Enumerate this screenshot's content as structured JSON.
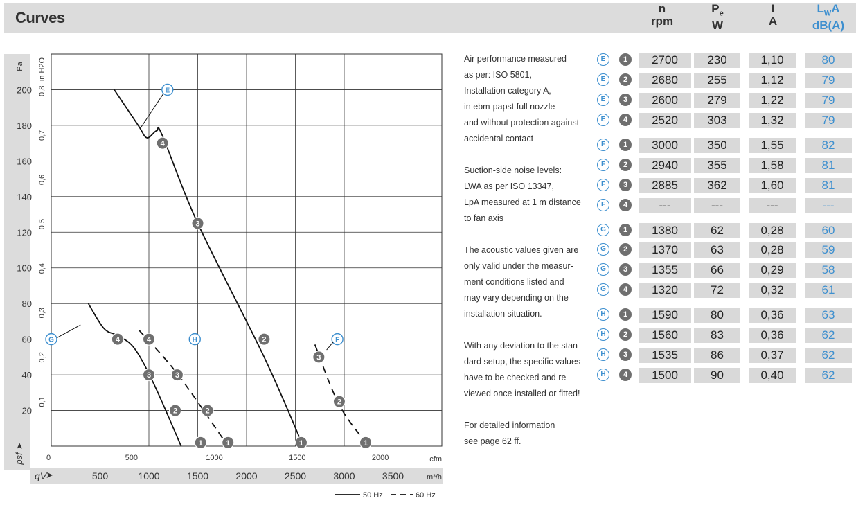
{
  "header": {
    "title": "Curves",
    "col_n": {
      "top": "n",
      "bottom": "rpm"
    },
    "col_p": {
      "top": "P",
      "sub": "e",
      "bottom": "W"
    },
    "col_i": {
      "top": "I",
      "bottom": "A"
    },
    "col_lwa": {
      "top": "L",
      "sub": "W",
      "top_suffix": "A",
      "bottom": "dB(A)"
    }
  },
  "colors": {
    "accent": "#3d8fcf",
    "marker": "#6f6f6f",
    "cell_bg": "#d9d9d9",
    "header_bg": "#dcdcdc"
  },
  "chart_data": {
    "type": "line",
    "y_axis_pa": {
      "label": "Pa",
      "ticks": [
        20,
        40,
        60,
        80,
        100,
        120,
        140,
        160,
        180,
        200
      ],
      "ylim": [
        0,
        220
      ]
    },
    "y_axis_inh2o": {
      "label": "in H2O",
      "ticks": [
        "0,1",
        "0,2",
        "0,3",
        "0,4",
        "0,5",
        "0,6",
        "0,7",
        "0,8"
      ]
    },
    "x_axis_cfm": {
      "unit": "cfm",
      "ticks": [
        "0",
        "500",
        "1000",
        "1500",
        "2000"
      ]
    },
    "x_axis_m3h": {
      "label": "qV",
      "unit": "m³/h",
      "ticks": [
        "500",
        "1000",
        "1500",
        "2000",
        "2500",
        "3000",
        "3500"
      ],
      "xlim": [
        0,
        4000
      ]
    },
    "y_bottom_label": "psf",
    "series": [
      {
        "name": "E",
        "freq": "50 Hz",
        "points": [
          [
            645,
            200
          ],
          [
            890,
            180
          ],
          [
            980,
            173
          ],
          [
            1080,
            177
          ],
          [
            1140,
            174
          ],
          [
            1500,
            125
          ],
          [
            2180,
            50
          ],
          [
            2580,
            0
          ]
        ],
        "label_at": [
          1190,
          200
        ],
        "markers": [
          {
            "n": "4",
            "x": 1140,
            "y": 170
          },
          {
            "n": "3",
            "x": 1500,
            "y": 125
          },
          {
            "n": "2",
            "x": 2180,
            "y": 60
          },
          {
            "n": "1",
            "x": 2560,
            "y": 2
          }
        ]
      },
      {
        "name": "G",
        "freq": "50 Hz",
        "points": [
          [
            380,
            80
          ],
          [
            540,
            66
          ],
          [
            680,
            62
          ],
          [
            850,
            55
          ],
          [
            1050,
            35
          ],
          [
            1330,
            0
          ]
        ],
        "label_at": [
          0,
          60
        ],
        "markers": [
          {
            "n": "4",
            "x": 680,
            "y": 60
          },
          {
            "n": "3",
            "x": 1000,
            "y": 40
          },
          {
            "n": "2",
            "x": 1270,
            "y": 20
          },
          {
            "n": "1",
            "x": 1530,
            "y": 2
          }
        ]
      },
      {
        "name": "H",
        "freq": "60 Hz",
        "points": [
          [
            900,
            65
          ],
          [
            1300,
            40
          ],
          [
            1810,
            0
          ]
        ],
        "label_at": [
          1470,
          60
        ],
        "markers": [
          {
            "n": "4",
            "x": 1000,
            "y": 60
          },
          {
            "n": "3",
            "x": 1290,
            "y": 40
          },
          {
            "n": "2",
            "x": 1600,
            "y": 20
          },
          {
            "n": "1",
            "x": 1810,
            "y": 2
          }
        ]
      },
      {
        "name": "F",
        "freq": "60 Hz",
        "points": [
          [
            2700,
            57
          ],
          [
            2950,
            23
          ],
          [
            3250,
            0
          ]
        ],
        "label_at": [
          2930,
          60
        ],
        "markers": [
          {
            "n": "3",
            "x": 2740,
            "y": 50
          },
          {
            "n": "2",
            "x": 2950,
            "y": 25
          },
          {
            "n": "1",
            "x": 3220,
            "y": 2
          }
        ]
      }
    ],
    "legend": [
      {
        "label": "50 Hz",
        "style": "solid"
      },
      {
        "label": "60 Hz",
        "style": "dashed"
      }
    ]
  },
  "notes": [
    "Air performance measured\nas per: ISO 5801,\nInstallation category A,\nin ebm-papst full nozzle\nand without protection against\naccidental contact",
    "Suction-side noise levels:\nLWA as per ISO 13347,\nLpA measured at 1 m distance\nto fan axis",
    "The acoustic values given are\nonly valid under the measur-\nment conditions listed and\nmay vary depending on the\ninstallation situation.",
    "With any deviation to the stan-\ndard setup, the specific values\nhave to be checked and re-\nviewed once installed or fitted!",
    "For detailed information\nsee page 62 ff."
  ],
  "table": [
    {
      "curve": "E",
      "point": "1",
      "n": "2700",
      "p": "230",
      "i": "1,10",
      "lwa": "80"
    },
    {
      "curve": "E",
      "point": "2",
      "n": "2680",
      "p": "255",
      "i": "1,12",
      "lwa": "79"
    },
    {
      "curve": "E",
      "point": "3",
      "n": "2600",
      "p": "279",
      "i": "1,22",
      "lwa": "79"
    },
    {
      "curve": "E",
      "point": "4",
      "n": "2520",
      "p": "303",
      "i": "1,32",
      "lwa": "79"
    },
    {
      "curve": "F",
      "point": "1",
      "n": "3000",
      "p": "350",
      "i": "1,55",
      "lwa": "82"
    },
    {
      "curve": "F",
      "point": "2",
      "n": "2940",
      "p": "355",
      "i": "1,58",
      "lwa": "81"
    },
    {
      "curve": "F",
      "point": "3",
      "n": "2885",
      "p": "362",
      "i": "1,60",
      "lwa": "81"
    },
    {
      "curve": "F",
      "point": "4",
      "n": "---",
      "p": "---",
      "i": "---",
      "lwa": "---"
    },
    {
      "curve": "G",
      "point": "1",
      "n": "1380",
      "p": "62",
      "i": "0,28",
      "lwa": "60"
    },
    {
      "curve": "G",
      "point": "2",
      "n": "1370",
      "p": "63",
      "i": "0,28",
      "lwa": "59"
    },
    {
      "curve": "G",
      "point": "3",
      "n": "1355",
      "p": "66",
      "i": "0,29",
      "lwa": "58"
    },
    {
      "curve": "G",
      "point": "4",
      "n": "1320",
      "p": "72",
      "i": "0,32",
      "lwa": "61"
    },
    {
      "curve": "H",
      "point": "1",
      "n": "1590",
      "p": "80",
      "i": "0,36",
      "lwa": "63"
    },
    {
      "curve": "H",
      "point": "2",
      "n": "1560",
      "p": "83",
      "i": "0,36",
      "lwa": "62"
    },
    {
      "curve": "H",
      "point": "3",
      "n": "1535",
      "p": "86",
      "i": "0,37",
      "lwa": "62"
    },
    {
      "curve": "H",
      "point": "4",
      "n": "1500",
      "p": "90",
      "i": "0,40",
      "lwa": "62"
    }
  ]
}
